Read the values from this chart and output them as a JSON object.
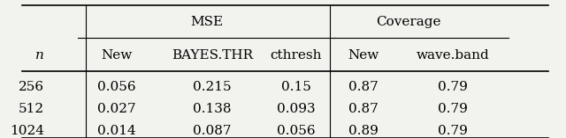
{
  "col_headers_top": [
    "",
    "MSE",
    "",
    "",
    "Coverage",
    ""
  ],
  "col_headers_sub": [
    "n",
    "New",
    "BAYES.THR",
    "cthresh",
    "New",
    "wave.band"
  ],
  "rows": [
    [
      "256",
      "0.056",
      "0.215",
      "0.15",
      "0.87",
      "0.79"
    ],
    [
      "512",
      "0.027",
      "0.138",
      "0.093",
      "0.87",
      "0.79"
    ],
    [
      "1024",
      "0.014",
      "0.087",
      "0.056",
      "0.89",
      "0.79"
    ]
  ],
  "bg_color": "#f2f2ee",
  "font_family": "serif",
  "fontsize": 11
}
